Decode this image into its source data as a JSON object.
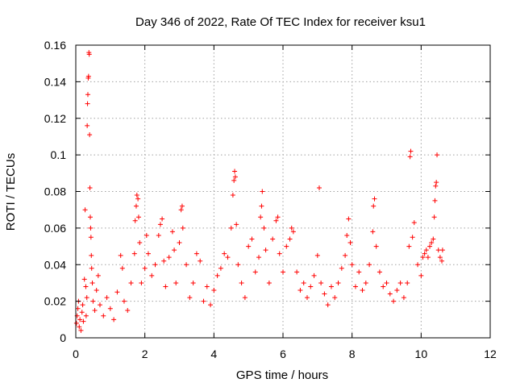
{
  "chart_data": {
    "type": "scatter",
    "title": "Day 346 of 2022, Rate Of TEC Index for receiver ksu1",
    "xlabel": "GPS time / hours",
    "ylabel": "ROTI / TECUs",
    "xlim": [
      0,
      12
    ],
    "ylim": [
      0,
      0.16
    ],
    "x_ticks": [
      0,
      2,
      4,
      6,
      8,
      10,
      12
    ],
    "x_tick_labels": [
      "0",
      "2",
      "4",
      "6",
      "8",
      "10",
      "12"
    ],
    "y_ticks": [
      0,
      0.02,
      0.04,
      0.06,
      0.08,
      0.1,
      0.12,
      0.14,
      0.16
    ],
    "y_tick_labels": [
      "0",
      "0.02",
      "0.04",
      "0.06",
      "0.08",
      "0.1",
      "0.12",
      "0.14",
      "0.16"
    ],
    "grid": true,
    "marker": "+",
    "color": "#ff0000",
    "series": [
      {
        "name": "ROTI",
        "points": [
          [
            0.02,
            0.008
          ],
          [
            0.04,
            0.012
          ],
          [
            0.06,
            0.016
          ],
          [
            0.08,
            0.02
          ],
          [
            0.1,
            0.006
          ],
          [
            0.12,
            0.01
          ],
          [
            0.15,
            0.004
          ],
          [
            0.18,
            0.014
          ],
          [
            0.2,
            0.018
          ],
          [
            0.22,
            0.009
          ],
          [
            0.25,
            0.032
          ],
          [
            0.27,
            0.07
          ],
          [
            0.29,
            0.028
          ],
          [
            0.3,
            0.012
          ],
          [
            0.32,
            0.022
          ],
          [
            0.33,
            0.116
          ],
          [
            0.34,
            0.128
          ],
          [
            0.35,
            0.133
          ],
          [
            0.36,
            0.142
          ],
          [
            0.37,
            0.143
          ],
          [
            0.38,
            0.156
          ],
          [
            0.39,
            0.155
          ],
          [
            0.4,
            0.111
          ],
          [
            0.41,
            0.082
          ],
          [
            0.42,
            0.066
          ],
          [
            0.43,
            0.06
          ],
          [
            0.44,
            0.055
          ],
          [
            0.45,
            0.045
          ],
          [
            0.46,
            0.038
          ],
          [
            0.48,
            0.03
          ],
          [
            0.5,
            0.02
          ],
          [
            0.55,
            0.015
          ],
          [
            0.6,
            0.026
          ],
          [
            0.65,
            0.034
          ],
          [
            0.7,
            0.018
          ],
          [
            0.8,
            0.012
          ],
          [
            0.9,
            0.022
          ],
          [
            1.0,
            0.016
          ],
          [
            1.1,
            0.01
          ],
          [
            1.2,
            0.025
          ],
          [
            1.3,
            0.045
          ],
          [
            1.35,
            0.038
          ],
          [
            1.4,
            0.02
          ],
          [
            1.5,
            0.015
          ],
          [
            1.6,
            0.03
          ],
          [
            1.7,
            0.046
          ],
          [
            1.72,
            0.064
          ],
          [
            1.75,
            0.072
          ],
          [
            1.77,
            0.078
          ],
          [
            1.8,
            0.076
          ],
          [
            1.82,
            0.066
          ],
          [
            1.85,
            0.052
          ],
          [
            1.9,
            0.03
          ],
          [
            2.0,
            0.038
          ],
          [
            2.05,
            0.056
          ],
          [
            2.1,
            0.046
          ],
          [
            2.2,
            0.034
          ],
          [
            2.3,
            0.04
          ],
          [
            2.4,
            0.056
          ],
          [
            2.45,
            0.062
          ],
          [
            2.5,
            0.065
          ],
          [
            2.55,
            0.042
          ],
          [
            2.6,
            0.028
          ],
          [
            2.7,
            0.044
          ],
          [
            2.8,
            0.058
          ],
          [
            2.85,
            0.048
          ],
          [
            2.9,
            0.03
          ],
          [
            3.0,
            0.052
          ],
          [
            3.05,
            0.07
          ],
          [
            3.08,
            0.072
          ],
          [
            3.1,
            0.06
          ],
          [
            3.2,
            0.04
          ],
          [
            3.3,
            0.022
          ],
          [
            3.4,
            0.03
          ],
          [
            3.5,
            0.046
          ],
          [
            3.6,
            0.042
          ],
          [
            3.7,
            0.02
          ],
          [
            3.8,
            0.028
          ],
          [
            3.9,
            0.018
          ],
          [
            4.0,
            0.026
          ],
          [
            4.1,
            0.034
          ],
          [
            4.2,
            0.038
          ],
          [
            4.3,
            0.046
          ],
          [
            4.4,
            0.044
          ],
          [
            4.5,
            0.06
          ],
          [
            4.55,
            0.078
          ],
          [
            4.58,
            0.086
          ],
          [
            4.6,
            0.091
          ],
          [
            4.62,
            0.088
          ],
          [
            4.65,
            0.062
          ],
          [
            4.7,
            0.04
          ],
          [
            4.8,
            0.03
          ],
          [
            4.9,
            0.022
          ],
          [
            5.0,
            0.05
          ],
          [
            5.1,
            0.054
          ],
          [
            5.2,
            0.036
          ],
          [
            5.3,
            0.044
          ],
          [
            5.35,
            0.066
          ],
          [
            5.38,
            0.072
          ],
          [
            5.4,
            0.08
          ],
          [
            5.45,
            0.06
          ],
          [
            5.5,
            0.048
          ],
          [
            5.6,
            0.03
          ],
          [
            5.7,
            0.054
          ],
          [
            5.8,
            0.064
          ],
          [
            5.85,
            0.066
          ],
          [
            5.9,
            0.046
          ],
          [
            6.0,
            0.036
          ],
          [
            6.1,
            0.05
          ],
          [
            6.2,
            0.054
          ],
          [
            6.25,
            0.06
          ],
          [
            6.3,
            0.058
          ],
          [
            6.4,
            0.036
          ],
          [
            6.5,
            0.026
          ],
          [
            6.6,
            0.03
          ],
          [
            6.7,
            0.022
          ],
          [
            6.8,
            0.028
          ],
          [
            6.9,
            0.034
          ],
          [
            7.0,
            0.045
          ],
          [
            7.05,
            0.082
          ],
          [
            7.1,
            0.03
          ],
          [
            7.2,
            0.024
          ],
          [
            7.3,
            0.018
          ],
          [
            7.4,
            0.028
          ],
          [
            7.5,
            0.022
          ],
          [
            7.6,
            0.03
          ],
          [
            7.7,
            0.038
          ],
          [
            7.8,
            0.045
          ],
          [
            7.85,
            0.056
          ],
          [
            7.9,
            0.065
          ],
          [
            7.95,
            0.052
          ],
          [
            8.0,
            0.04
          ],
          [
            8.1,
            0.028
          ],
          [
            8.2,
            0.036
          ],
          [
            8.3,
            0.026
          ],
          [
            8.4,
            0.03
          ],
          [
            8.5,
            0.04
          ],
          [
            8.6,
            0.058
          ],
          [
            8.62,
            0.072
          ],
          [
            8.65,
            0.076
          ],
          [
            8.7,
            0.05
          ],
          [
            8.8,
            0.036
          ],
          [
            8.9,
            0.028
          ],
          [
            9.0,
            0.03
          ],
          [
            9.1,
            0.024
          ],
          [
            9.2,
            0.02
          ],
          [
            9.3,
            0.026
          ],
          [
            9.4,
            0.03
          ],
          [
            9.5,
            0.022
          ],
          [
            9.6,
            0.03
          ],
          [
            9.65,
            0.05
          ],
          [
            9.68,
            0.099
          ],
          [
            9.7,
            0.102
          ],
          [
            9.75,
            0.055
          ],
          [
            9.8,
            0.063
          ],
          [
            9.9,
            0.04
          ],
          [
            10.0,
            0.034
          ],
          [
            10.05,
            0.044
          ],
          [
            10.1,
            0.046
          ],
          [
            10.15,
            0.048
          ],
          [
            10.2,
            0.044
          ],
          [
            10.25,
            0.05
          ],
          [
            10.3,
            0.052
          ],
          [
            10.35,
            0.054
          ],
          [
            10.38,
            0.066
          ],
          [
            10.4,
            0.075
          ],
          [
            10.42,
            0.083
          ],
          [
            10.44,
            0.085
          ],
          [
            10.46,
            0.1
          ],
          [
            10.5,
            0.048
          ],
          [
            10.55,
            0.044
          ],
          [
            10.6,
            0.042
          ],
          [
            10.62,
            0.048
          ]
        ]
      }
    ]
  }
}
